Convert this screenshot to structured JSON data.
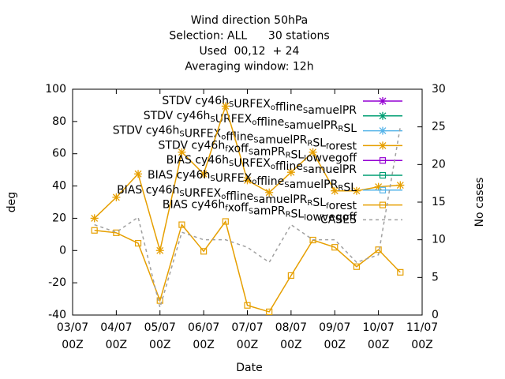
{
  "chart_data": {
    "type": "line",
    "title": [
      "Wind direction 50hPa",
      "Selection: ALL      30 stations",
      "Used  00,12  + 24",
      "Averaging window: 12h"
    ],
    "xlabel": "Date",
    "ylabel": "deg",
    "y2label": "No cases",
    "x": [
      "03/07 12Z",
      "04/07 00Z",
      "04/07 12Z",
      "05/07 00Z",
      "05/07 12Z",
      "06/07 00Z",
      "06/07 12Z",
      "07/07 00Z",
      "07/07 12Z",
      "08/07 00Z",
      "08/07 12Z",
      "09/07 00Z",
      "09/07 12Z",
      "10/07 00Z",
      "10/07 12Z"
    ],
    "xlim": [
      "03/07 00Z",
      "11/07 00Z"
    ],
    "xticks": [
      {
        "value": "03/07 00Z",
        "label": [
          "03/07",
          "00Z"
        ]
      },
      {
        "value": "04/07 00Z",
        "label": [
          "04/07",
          "00Z"
        ]
      },
      {
        "value": "05/07 00Z",
        "label": [
          "05/07",
          "00Z"
        ]
      },
      {
        "value": "06/07 00Z",
        "label": [
          "06/07",
          "00Z"
        ]
      },
      {
        "value": "07/07 00Z",
        "label": [
          "07/07",
          "00Z"
        ]
      },
      {
        "value": "08/07 00Z",
        "label": [
          "08/07",
          "00Z"
        ]
      },
      {
        "value": "09/07 00Z",
        "label": [
          "09/07",
          "00Z"
        ]
      },
      {
        "value": "10/07 00Z",
        "label": [
          "10/07",
          "00Z"
        ]
      },
      {
        "value": "11/07 00Z",
        "label": [
          "11/07",
          "00Z"
        ]
      }
    ],
    "ylim": [
      -40,
      100
    ],
    "yticks": [
      -40,
      -20,
      0,
      20,
      40,
      60,
      80,
      100
    ],
    "y2lim": [
      0,
      30
    ],
    "y2ticks": [
      0,
      5,
      10,
      15,
      20,
      25,
      30
    ],
    "legend": "top-right",
    "series": [
      {
        "name": "STDV cy46h_SURFEX_offline_SamuelPR",
        "color": "#9400d3",
        "marker": "star",
        "values": [
          null,
          null,
          null,
          null,
          null,
          null,
          null,
          null,
          null,
          null,
          null,
          null,
          null,
          null,
          null
        ]
      },
      {
        "name": "STDV cy46h_SURFEX_offline_SamuelPR_RSL",
        "color": "#009e73",
        "marker": "star",
        "values": [
          null,
          null,
          null,
          null,
          null,
          null,
          null,
          null,
          null,
          null,
          null,
          null,
          null,
          null,
          null
        ]
      },
      {
        "name": "STDV cy46h_SURFEX_offline_SamuelPR_RSL_forest",
        "color": "#56b4e9",
        "marker": "star",
        "values": [
          null,
          null,
          null,
          null,
          null,
          null,
          null,
          null,
          null,
          null,
          null,
          null,
          null,
          null,
          null
        ]
      },
      {
        "name": "STDV cy46h_fxoff_SamPR_RSL_lowvegoff",
        "color": "#e69f00",
        "marker": "star",
        "values": [
          20,
          33,
          47.5,
          0,
          61,
          47.5,
          89.5,
          43.5,
          36,
          48.5,
          61,
          37,
          37,
          39.5,
          40.5
        ]
      },
      {
        "name": "BIAS cy46h_SURFEX_offline_SamuelPR",
        "color": "#9400d3",
        "marker": "square",
        "values": [
          null,
          null,
          null,
          null,
          null,
          null,
          null,
          null,
          null,
          null,
          null,
          null,
          null,
          null,
          null
        ]
      },
      {
        "name": "BIAS cy46h_SURFEX_offline_SamuelPR_RSL",
        "color": "#009e73",
        "marker": "square",
        "values": [
          null,
          null,
          null,
          null,
          null,
          null,
          null,
          null,
          null,
          null,
          null,
          null,
          null,
          null,
          null
        ]
      },
      {
        "name": "BIAS cy46h_SURFEX_offline_SamuelPR_RSL_forest",
        "color": "#56b4e9",
        "marker": "square",
        "values": [
          null,
          null,
          null,
          null,
          null,
          null,
          null,
          null,
          null,
          null,
          null,
          null,
          null,
          null,
          null
        ]
      },
      {
        "name": "BIAS cy46h_fxoff_SamPR_RSL_lowvegoff",
        "color": "#e69f00",
        "marker": "square",
        "values": [
          12.5,
          11,
          4.5,
          -31,
          16,
          -0.5,
          18,
          -34,
          -38,
          -15.5,
          6.5,
          2,
          -10,
          0.5,
          -13.5
        ]
      },
      {
        "name": "CASES",
        "color": "#a0a0a0",
        "dashed": true,
        "axis": "y2",
        "values": [
          12,
          11,
          13,
          1,
          11,
          10,
          10,
          9,
          7,
          12,
          10,
          10,
          7,
          8,
          25
        ]
      }
    ]
  }
}
